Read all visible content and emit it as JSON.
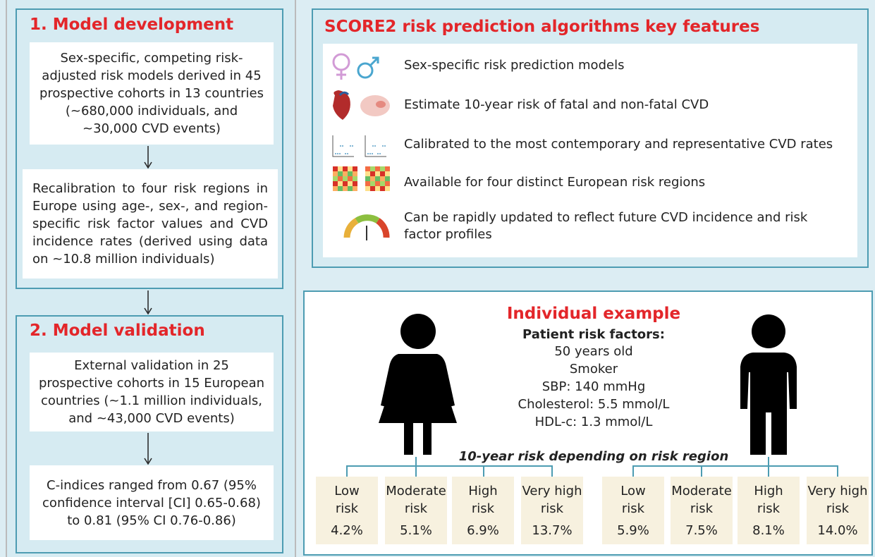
{
  "development": {
    "title": "1. Model development",
    "steps": [
      "Sex-specific, competing risk-adjusted risk models derived in 45 prospective cohorts in 13 countries (~680,000 individuals, and ~30,000 CVD events)",
      "Recalibration to four risk regions in Europe using age-, sex-, and region-specific risk factor values and CVD incidence rates (derived using data on ~10.8 million individuals)"
    ]
  },
  "validation": {
    "title": "2. Model validation",
    "steps": [
      "External validation in 25 prospective cohorts in 15 European countries (~1.1 million individuals, and ~43,000 CVD events)",
      "C-indices ranged from 0.67 (95% confidence interval [CI] 0.65-0.68) to 0.81 (95% CI 0.76-0.86)"
    ]
  },
  "features": {
    "title": "SCORE2 risk prediction algorithms key features",
    "items": [
      "Sex-specific risk prediction models",
      "Estimate 10-year risk of fatal and non-fatal CVD",
      "Calibrated to the most contemporary and representative CVD rates",
      "Available for four distinct European risk regions",
      "Can be rapidly updated to reflect future CVD incidence and risk factor profiles"
    ]
  },
  "example": {
    "title": "Individual example",
    "factors_title": "Patient risk factors:",
    "factors": [
      "50 years old",
      "Smoker",
      "SBP: 140 mmHg",
      "Cholesterol: 5.5 mmol/L",
      "HDL-c: 1.3 mmol/L"
    ],
    "risk_caption": "10-year risk depending on risk region",
    "female": [
      {
        "label": "Low\nrisk",
        "value": "4.2%"
      },
      {
        "label": "Moderate\nrisk",
        "value": "5.1%"
      },
      {
        "label": "High\nrisk",
        "value": "6.9%"
      },
      {
        "label": "Very high\nrisk",
        "value": "13.7%"
      }
    ],
    "male": [
      {
        "label": "Low\nrisk",
        "value": "5.9%"
      },
      {
        "label": "Moderate\nrisk",
        "value": "7.5%"
      },
      {
        "label": "High\nrisk",
        "value": "8.1%"
      },
      {
        "label": "Very high\nrisk",
        "value": "14.0%"
      }
    ]
  }
}
